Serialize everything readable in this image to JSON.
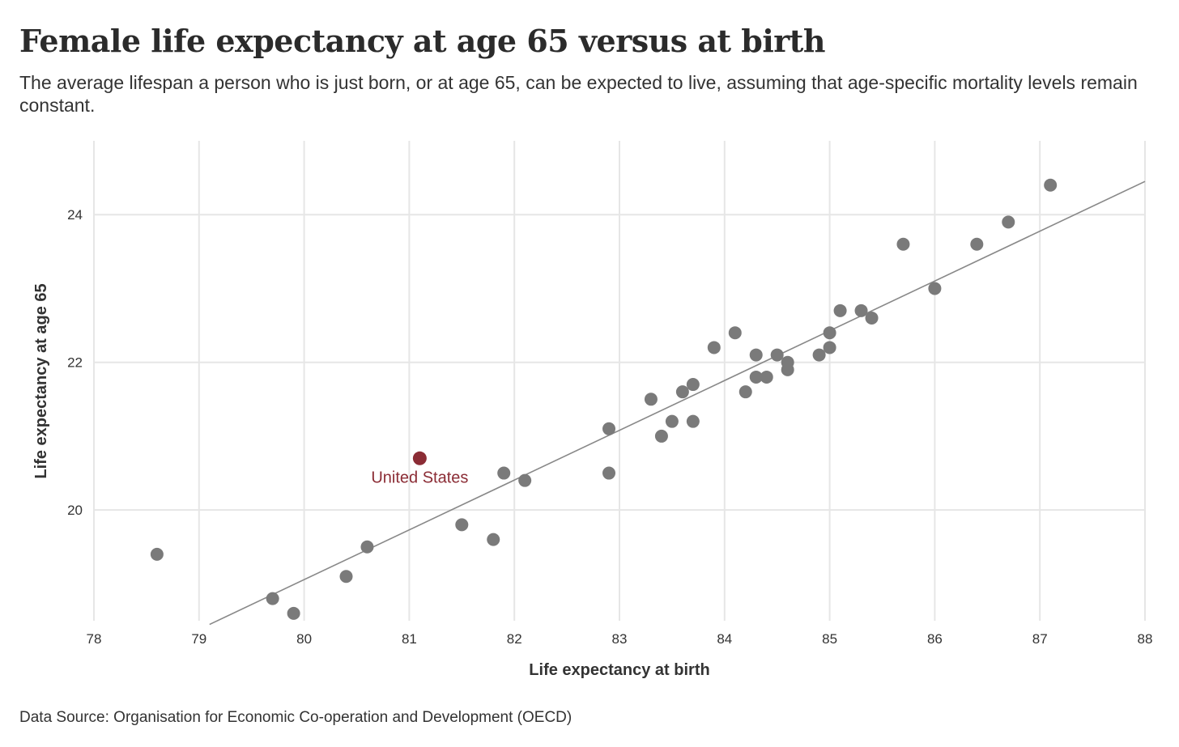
{
  "title": "Female life expectancy at age 65 versus at birth",
  "subtitle": "The average lifespan a person who is just born, or at age 65, can be expected to live, assuming that age-specific mortality levels remain constant.",
  "source": "Data Source: Organisation for Economic Co-operation and Development (OECD)",
  "colors": {
    "point": "#7a7a7a",
    "highlight": "#8b2c35",
    "trendline": "#888888",
    "grid": "#e6e6e6"
  },
  "chart_data": {
    "type": "scatter",
    "xlabel": "Life expectancy at birth",
    "ylabel": "Life expectancy at age 65",
    "xlim": [
      78,
      88
    ],
    "ylim": [
      18.5,
      25
    ],
    "xticks": [
      78,
      79,
      80,
      81,
      82,
      83,
      84,
      85,
      86,
      87,
      88
    ],
    "yticks": [
      20,
      22,
      24
    ],
    "grid": true,
    "series": [
      {
        "name": "Countries",
        "x": [
          78.6,
          79.7,
          79.9,
          80.4,
          80.6,
          81.5,
          81.8,
          81.9,
          82.1,
          82.9,
          82.9,
          83.3,
          83.4,
          83.5,
          83.6,
          83.7,
          83.7,
          83.9,
          84.1,
          84.2,
          84.3,
          84.3,
          84.4,
          84.5,
          84.6,
          84.6,
          84.9,
          85.0,
          85.0,
          85.1,
          85.3,
          85.4,
          85.7,
          86.0,
          86.4,
          86.7,
          87.1
        ],
        "y": [
          19.4,
          18.8,
          18.6,
          19.1,
          19.5,
          19.8,
          19.6,
          20.5,
          20.4,
          21.1,
          20.5,
          21.5,
          21.0,
          21.2,
          21.6,
          21.7,
          21.2,
          22.2,
          22.4,
          21.6,
          22.1,
          21.8,
          21.8,
          22.1,
          22.0,
          21.9,
          22.1,
          22.4,
          22.2,
          22.7,
          22.7,
          22.6,
          23.6,
          23.0,
          23.6,
          23.9,
          24.4
        ]
      }
    ],
    "highlight": {
      "name": "United States",
      "label": "United States",
      "x": 81.1,
      "y": 20.7
    },
    "trendline": {
      "x": [
        79.1,
        88.0
      ],
      "y": [
        18.45,
        24.45
      ]
    }
  }
}
